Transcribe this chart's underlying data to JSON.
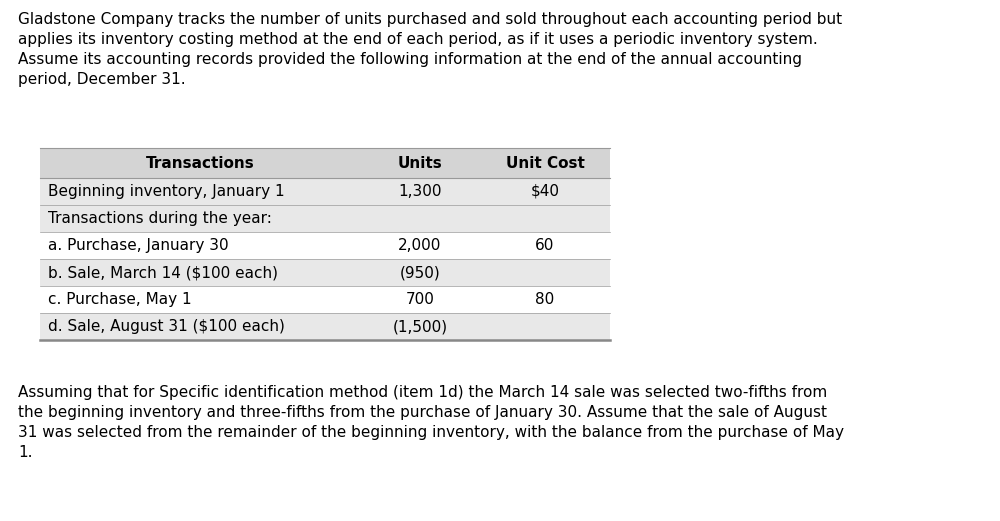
{
  "background_color": "#ffffff",
  "fig_width": 10.0,
  "fig_height": 5.21,
  "dpi": 100,
  "top_paragraph": "Gladstone Company tracks the number of units purchased and sold throughout each accounting period but\napplies its inventory costing method at the end of each period, as if it uses a periodic inventory system.\nAssume its accounting records provided the following information at the end of the annual accounting\nperiod, December 31.",
  "table": {
    "header_row": [
      "Transactions",
      "Units",
      "Unit Cost"
    ],
    "header_bg": "#d4d4d4",
    "rows": [
      [
        "Beginning inventory, January 1",
        "1,300",
        "$40"
      ],
      [
        "Transactions during the year:",
        "",
        ""
      ],
      [
        "a. Purchase, January 30",
        "2,000",
        "60"
      ],
      [
        "b. Sale, March 14 ($100 each)",
        "(950)",
        ""
      ],
      [
        "c. Purchase, May 1",
        "700",
        "80"
      ],
      [
        "d. Sale, August 31 ($100 each)",
        "(1,500)",
        ""
      ]
    ],
    "row_bg_gray": "#e8e8e8",
    "row_bg_white": "#ffffff",
    "border_color": "#999999",
    "bottom_line_color": "#888888",
    "font_size": 11.0,
    "header_font_size": 11.0
  },
  "bottom_paragraph": "Assuming that for Specific identification method (item 1d) the March 14 sale was selected two-fifths from\nthe beginning inventory and three-fifths from the purchase of January 30. Assume that the sale of August\n31 was selected from the remainder of the beginning inventory, with the balance from the purchase of May\n1.",
  "text_color": "#000000",
  "font_size_paragraph": 11.0
}
